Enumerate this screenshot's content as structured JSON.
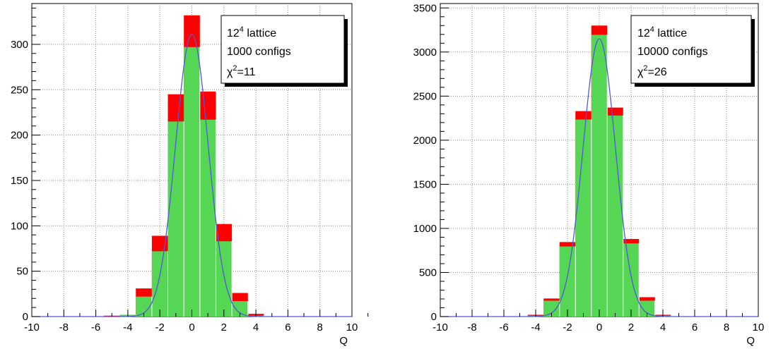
{
  "chart_data": [
    {
      "type": "bar",
      "xlabel": "Q",
      "ylabel": "",
      "xlim": [
        -10,
        10
      ],
      "ylim": [
        0,
        345
      ],
      "x_ticks": [
        -10,
        -8,
        -6,
        -4,
        -2,
        0,
        2,
        4,
        6,
        8,
        10
      ],
      "x_tick_labels": [
        "-10",
        "-8",
        "-6",
        "-4",
        "-2",
        "0",
        "2",
        "4",
        "6",
        "8",
        "10"
      ],
      "y_ticks": [
        0,
        50,
        100,
        150,
        200,
        250,
        300
      ],
      "y_tick_labels": [
        "0",
        "50",
        "100",
        "150",
        "200",
        "250",
        "300"
      ],
      "grid": true,
      "bin_width": 1,
      "bin_centers": [
        -5,
        -4,
        -3,
        -2,
        -1,
        0,
        1,
        2,
        3,
        4,
        5
      ],
      "series": [
        {
          "role": "histogram",
          "color": "#ff0000",
          "values": [
            1,
            0,
            31,
            89,
            245,
            332,
            248,
            102,
            26,
            3,
            0
          ]
        },
        {
          "role": "expected",
          "color": "#55d655",
          "values": [
            0,
            2,
            22,
            72,
            215,
            297,
            217,
            83,
            17,
            1,
            0
          ]
        },
        {
          "role": "fit",
          "color": "#5555dd",
          "curve": {
            "amplitude": 311,
            "mean": 0,
            "sigma": 1.02
          }
        }
      ],
      "legend": {
        "position": "top-right",
        "lattice_base": "12",
        "lattice_exp": "4",
        "lattice_rest": " lattice",
        "configs": "1000 configs",
        "chi_symbol": "χ",
        "chi_exp": "2",
        "chi_value": "=11"
      }
    },
    {
      "type": "bar",
      "xlabel": "Q",
      "ylabel": "",
      "xlim": [
        -10,
        10
      ],
      "ylim": [
        0,
        3550
      ],
      "x_ticks": [
        -10,
        -8,
        -6,
        -4,
        -2,
        0,
        2,
        4,
        6,
        8,
        10
      ],
      "x_tick_labels": [
        "-10",
        "-8",
        "-6",
        "-4",
        "-2",
        "0",
        "2",
        "4",
        "6",
        "8",
        "10"
      ],
      "y_ticks": [
        0,
        500,
        1000,
        1500,
        2000,
        2500,
        3000,
        3500
      ],
      "y_tick_labels": [
        "0",
        "500",
        "1000",
        "1500",
        "2000",
        "2500",
        "3000",
        "3500"
      ],
      "grid": true,
      "bin_width": 1,
      "bin_centers": [
        -5,
        -4,
        -3,
        -2,
        -1,
        0,
        1,
        2,
        3,
        4,
        5
      ],
      "series": [
        {
          "role": "histogram",
          "color": "#ff0000",
          "values": [
            0,
            20,
            205,
            845,
            2330,
            3300,
            2370,
            880,
            220,
            20,
            0
          ]
        },
        {
          "role": "expected",
          "color": "#55d655",
          "values": [
            0,
            10,
            180,
            795,
            2235,
            3195,
            2280,
            830,
            180,
            10,
            0
          ]
        },
        {
          "role": "fit",
          "color": "#5555dd",
          "curve": {
            "amplitude": 3150,
            "mean": 0,
            "sigma": 1.02
          }
        }
      ],
      "legend": {
        "position": "top-right",
        "lattice_base": "12",
        "lattice_exp": "4",
        "lattice_rest": " lattice",
        "configs": "10000 configs",
        "chi_symbol": "χ",
        "chi_exp": "2",
        "chi_value": "=26"
      }
    }
  ]
}
